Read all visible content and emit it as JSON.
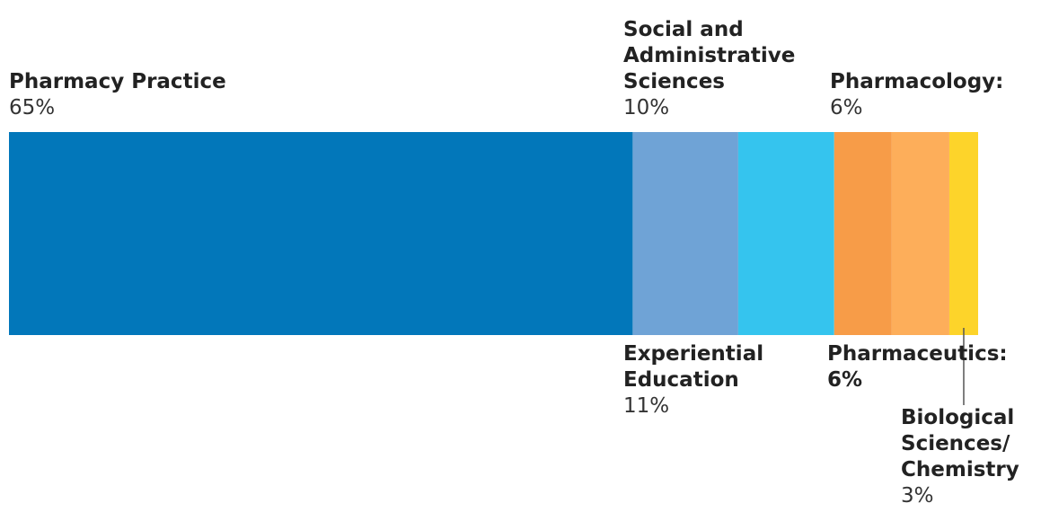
{
  "chart_data": {
    "type": "stacked-bar",
    "categories": [
      "Pharmacy Practice",
      "Experiential Education",
      "Social and Administrative Sciences",
      "Pharmacology:",
      "Pharmaceutics:",
      "Biological Sciences/ Chemistry"
    ],
    "values": [
      65,
      11,
      10,
      6,
      6,
      3
    ],
    "value_labels": [
      "65%",
      "11%",
      "10%",
      "6%",
      "6%",
      "3%"
    ],
    "colors": [
      "#0277ba",
      "#6fa3d6",
      "#35c4ee",
      "#f79c48",
      "#fdae5a",
      "#fdd42a"
    ]
  }
}
